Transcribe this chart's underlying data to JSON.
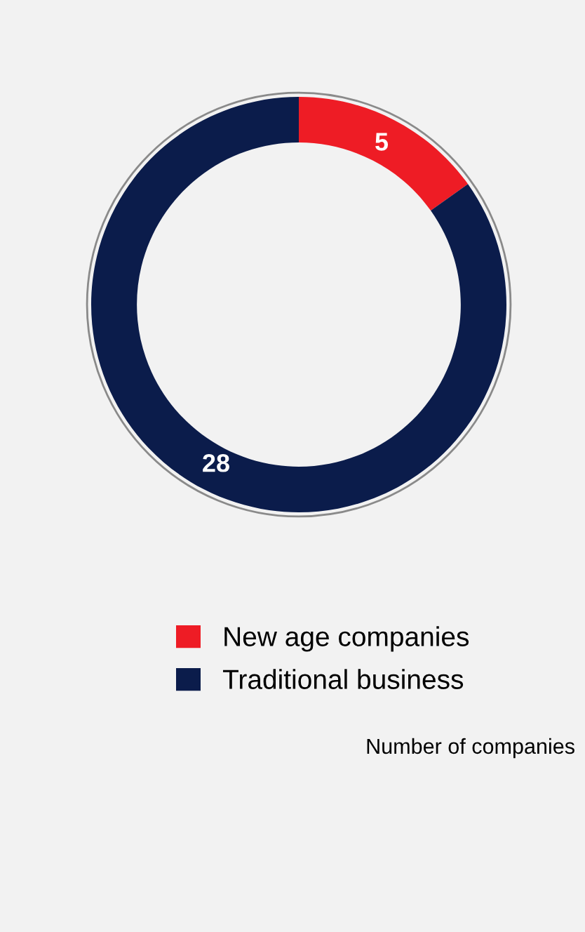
{
  "chart_data": {
    "type": "donut",
    "categories": [
      "New age companies",
      "Traditional business"
    ],
    "values": [
      5,
      28
    ],
    "colors": [
      "#ee1c25",
      "#0b1c4b"
    ],
    "data_labels": true,
    "legend": "bottom",
    "annotations": [
      "Number of companies"
    ]
  }
}
